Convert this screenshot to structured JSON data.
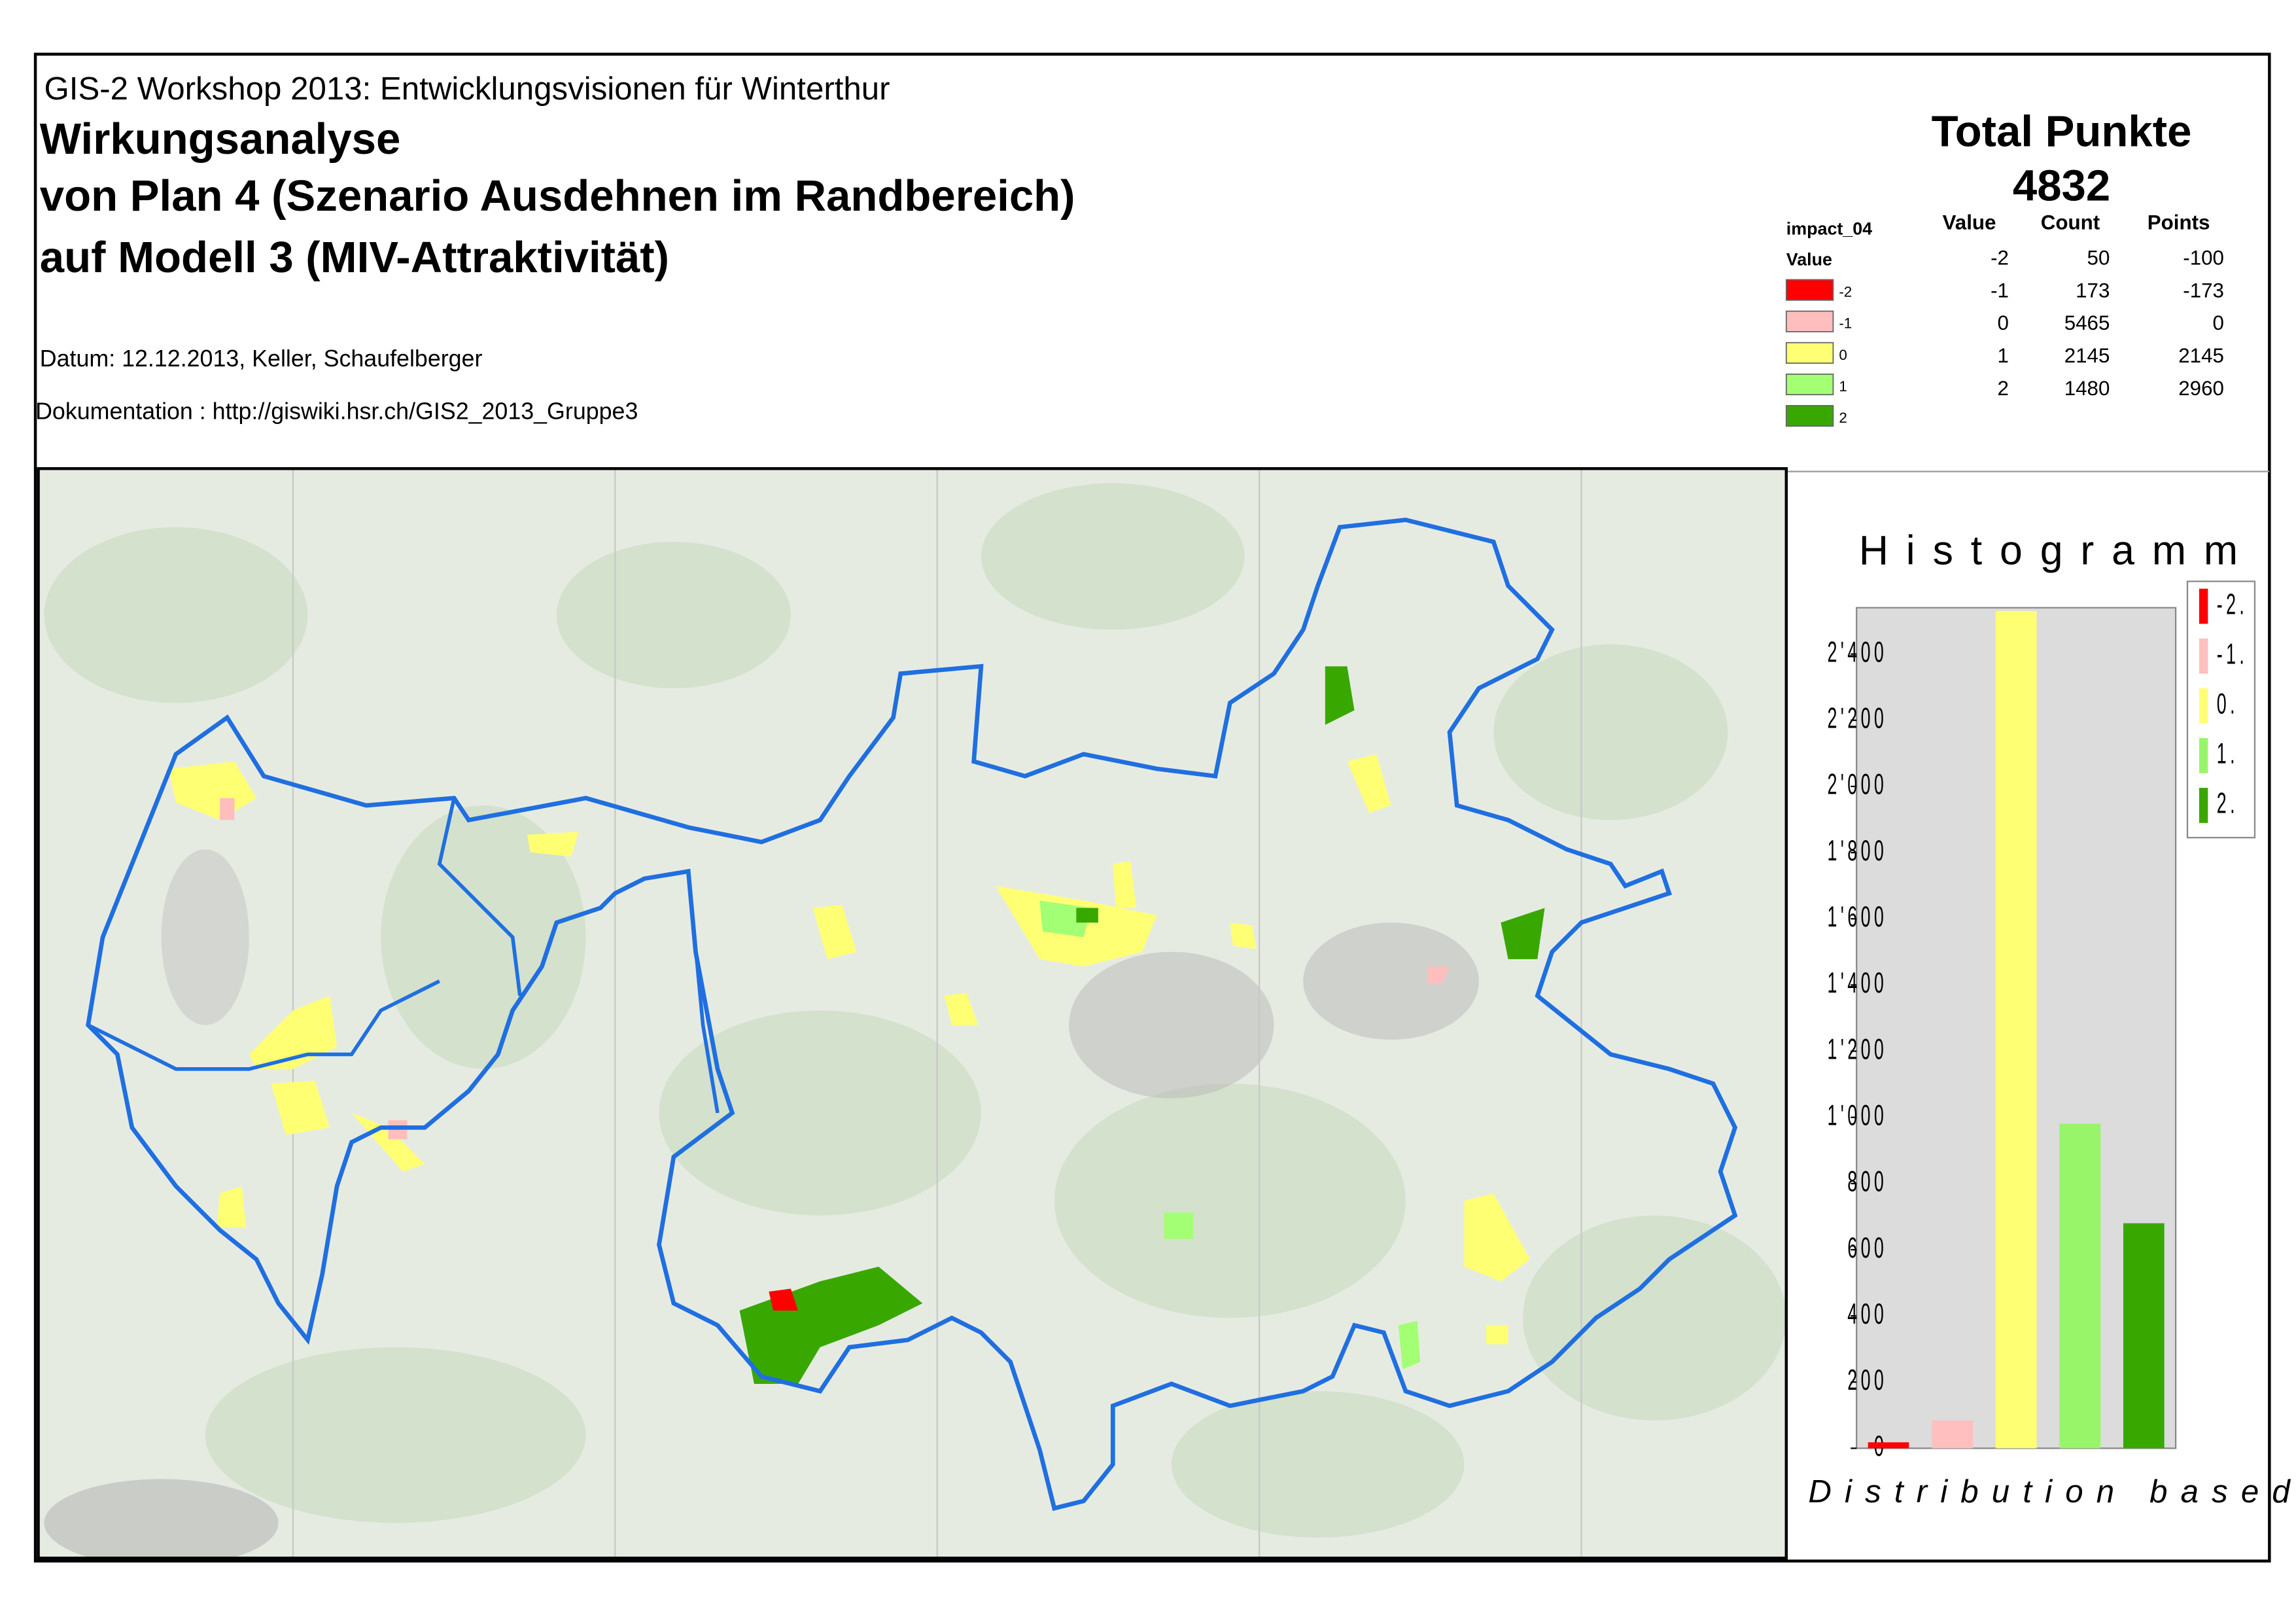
{
  "header": {
    "workshop": "GIS-2 Workshop 2013: Entwicklungsvisionen für Winterthur",
    "title": [
      "Wirkungsanalyse",
      "von Plan 4 (Szenario Ausdehnen im Randbereich)",
      "auf Modell 3 (MIV-Attraktivität)"
    ],
    "date": "Datum: 12.12.2013, Keller, Schaufelberger",
    "documentation": "Dokumentation : http://giswiki.hsr.ch/GIS2_2013_Gruppe3"
  },
  "total": {
    "label": "Total Punkte",
    "value": 4832
  },
  "legend": {
    "layer": "impact_04",
    "field": "Value",
    "items": [
      {
        "label": "-2",
        "color": "#ff0000"
      },
      {
        "label": "-1",
        "color": "#ffbebe"
      },
      {
        "label": "0",
        "color": "#ffff73"
      },
      {
        "label": "1",
        "color": "#a3ff73"
      },
      {
        "label": "2",
        "color": "#38a800"
      }
    ]
  },
  "table": {
    "columns": [
      "Value",
      "Count",
      "Points"
    ],
    "rows": [
      [
        -2,
        50,
        -100
      ],
      [
        -1,
        173,
        -173
      ],
      [
        0,
        5465,
        0
      ],
      [
        1,
        2145,
        2145
      ],
      [
        2,
        1480,
        2960
      ]
    ]
  },
  "chart_data": {
    "type": "bar",
    "title": "Histogramm",
    "x_label": "Distribution based on displa",
    "categories": [
      "-2.",
      "-1.",
      "0.",
      "1.",
      "2."
    ],
    "values": [
      18,
      84,
      2530,
      981,
      680
    ],
    "colors": [
      "#ff0000",
      "#ffbfbf",
      "#ffff73",
      "#98f56a",
      "#38a800"
    ],
    "ylim": [
      0,
      2540
    ],
    "yticks": [
      0,
      200,
      400,
      600,
      800,
      {
        "value": 1000,
        "label": "1'000"
      },
      {
        "value": 1200,
        "label": "1'200"
      },
      {
        "value": 1400,
        "label": "1'400"
      },
      {
        "value": 1600,
        "label": "1'600"
      },
      {
        "value": 1800,
        "label": "1'800"
      },
      {
        "value": 2000,
        "label": "2'000"
      },
      {
        "value": 2200,
        "label": "2'200"
      },
      {
        "value": 2400,
        "label": "2'400"
      }
    ]
  }
}
